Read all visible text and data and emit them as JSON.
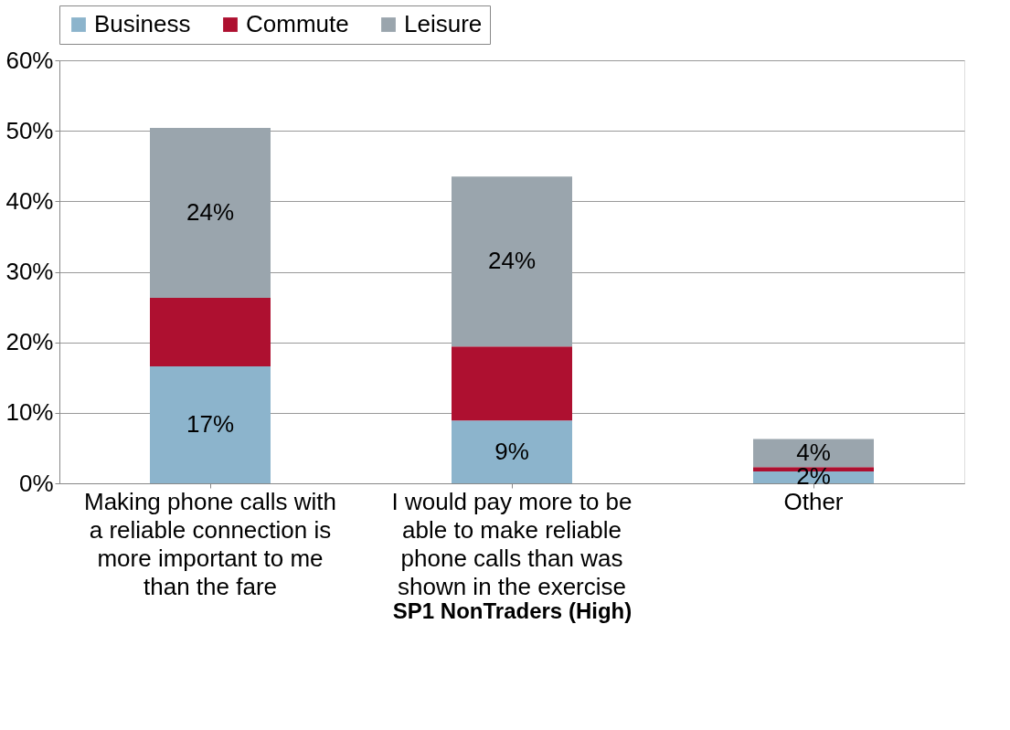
{
  "chart_data": {
    "type": "bar",
    "stacked": true,
    "xlabel": "SP1 NonTraders (High)",
    "categories": [
      "Making phone calls with a reliable connection is more important to me than the fare",
      "I would pay more to be able to make reliable phone calls than was shown in the exercise",
      "Other"
    ],
    "series": [
      {
        "name": "Business",
        "color": "#8cb4cc",
        "values": [
          16.6,
          8.9,
          1.7
        ],
        "value_labels": [
          "17%",
          "9%",
          "2%"
        ]
      },
      {
        "name": "Commute",
        "color": "#ae1030",
        "values": [
          9.7,
          10.5,
          0.6
        ],
        "value_labels": [
          null,
          null,
          null
        ]
      },
      {
        "name": "Leisure",
        "color": "#9aa5ad",
        "values": [
          24.1,
          24.1,
          4.0
        ],
        "value_labels": [
          "24%",
          "24%",
          "4%"
        ]
      }
    ],
    "ylim": [
      0,
      60
    ],
    "yticks": [
      {
        "value": 0,
        "label": "0%"
      },
      {
        "value": 10,
        "label": "10%"
      },
      {
        "value": 20,
        "label": "20%"
      },
      {
        "value": 30,
        "label": "30%"
      },
      {
        "value": 40,
        "label": "40%"
      },
      {
        "value": 50,
        "label": "50%"
      },
      {
        "value": 60,
        "label": "60%"
      }
    ],
    "grid": "y",
    "legend": "top"
  }
}
